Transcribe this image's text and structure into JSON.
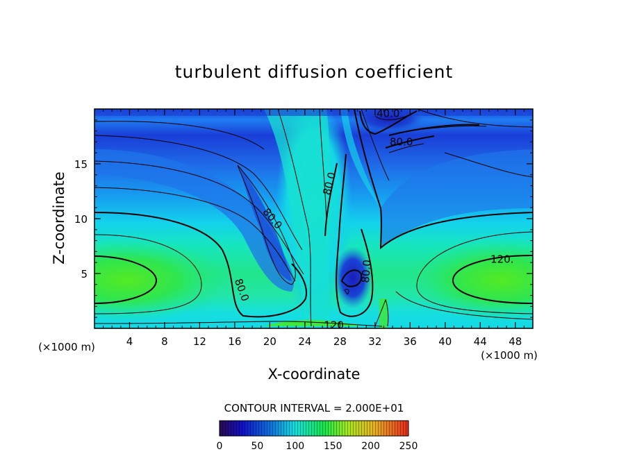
{
  "chart_data": {
    "type": "heatmap",
    "title": "turbulent diffusion coefficient",
    "xlabel": "X-coordinate",
    "ylabel": "Z-coordinate",
    "x_unit_left": "(×1000 m)",
    "x_unit_right": "(×1000 m)",
    "xlim": [
      0,
      50
    ],
    "ylim": [
      0,
      20
    ],
    "x_ticks": [
      4,
      8,
      12,
      16,
      20,
      24,
      28,
      32,
      36,
      40,
      44,
      48
    ],
    "y_ticks": [
      5,
      10,
      15
    ],
    "contour_interval_text": "CONTOUR INTERVAL = 2.000E+01",
    "contour_labels": [
      {
        "text": "40.0",
        "x": 33.5,
        "z": 19.6
      },
      {
        "text": "80.0",
        "x": 35.0,
        "z": 17.0
      },
      {
        "text": "80.0",
        "x": 26.8,
        "z": 13.2
      },
      {
        "text": "80.0",
        "x": 20.3,
        "z": 10.0
      },
      {
        "text": "80.0",
        "x": 31.0,
        "z": 5.2
      },
      {
        "text": "80.0",
        "x": 16.8,
        "z": 3.5
      },
      {
        "text": "120.",
        "x": 46.5,
        "z": 6.3
      },
      {
        "text": "120.",
        "x": 27.5,
        "z": 0.3
      }
    ],
    "colorbar": {
      "ticks": [
        0,
        50,
        100,
        150,
        200,
        250
      ],
      "min": 0,
      "max": 250,
      "stops": [
        "#2a0a50",
        "#1010c8",
        "#0a7ae0",
        "#12e0e0",
        "#10e850",
        "#a8e818",
        "#e8b020",
        "#e82818"
      ]
    },
    "field_color_scale": [
      "#1a14c8",
      "#1a5ae6",
      "#168ef2",
      "#14c6ee",
      "#16e6d2",
      "#18e69a",
      "#3ce63c"
    ]
  }
}
